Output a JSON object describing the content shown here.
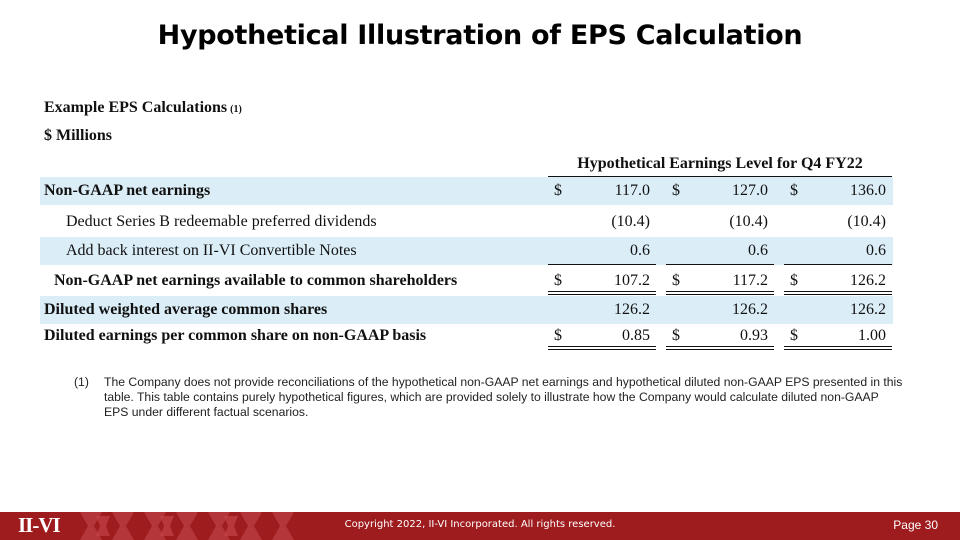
{
  "slide": {
    "title": "Hypothetical Illustration of EPS Calculation"
  },
  "table": {
    "heading": "Example EPS Calculations",
    "heading_note": "(1)",
    "units": "$ Millions",
    "column_header": "Hypothetical Earnings Level for Q4 FY22",
    "rows": [
      {
        "label": "Non-GAAP net earnings",
        "c1_sym": "$",
        "c1": "117.0",
        "c2_sym": "$",
        "c2": "127.0",
        "c3_sym": "$",
        "c3": "136.0"
      },
      {
        "label": "Deduct Series B redeemable preferred dividends",
        "c1": "(10.4)",
        "c2": "(10.4)",
        "c3": "(10.4)"
      },
      {
        "label": "Add back interest on II-VI Convertible Notes",
        "c1": "0.6",
        "c2": "0.6",
        "c3": "0.6"
      },
      {
        "label": "Non-GAAP net earnings available to common shareholders",
        "c1_sym": "$",
        "c1": "107.2",
        "c2_sym": "$",
        "c2": "117.2",
        "c3_sym": "$",
        "c3": "126.2"
      },
      {
        "label": "Diluted weighted average common shares",
        "c1": "126.2",
        "c2": "126.2",
        "c3": "126.2"
      },
      {
        "label": "Diluted earnings per common share on non-GAAP basis",
        "c1_sym": "$",
        "c1": "0.85",
        "c2_sym": "$",
        "c2": "0.93",
        "c3_sym": "$",
        "c3": "1.00"
      }
    ]
  },
  "footnote": {
    "mark": "(1)",
    "text": "The Company does not provide reconciliations of the hypothetical non-GAAP net earnings and hypothetical diluted non-GAAP EPS presented in this table.  This table contains purely hypothetical figures, which are provided solely to illustrate how the Company would calculate diluted non-GAAP EPS under different factual scenarios."
  },
  "footer": {
    "logo_text": "II-VI",
    "copyright": "Copyright 2022, II-VI Incorporated. All rights reserved.",
    "page": "Page 30",
    "bar_color": "#9e1b1e",
    "shade_color": "#dbeef8"
  }
}
